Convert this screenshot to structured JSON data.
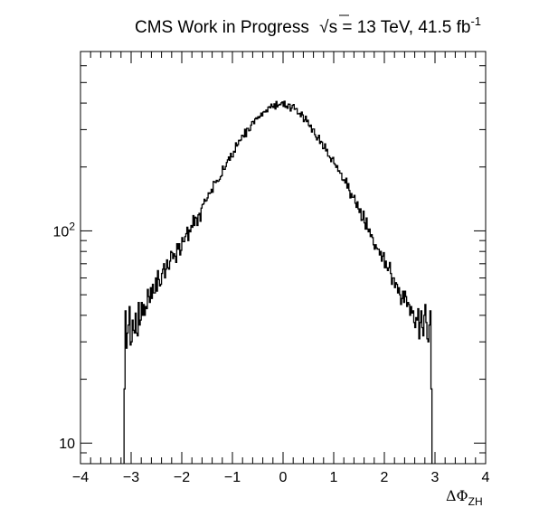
{
  "chart_data": {
    "type": "histogram",
    "title": {
      "prefix": "CMS Work in Progress",
      "sqrt_symbol": "√",
      "energy_var": "s",
      "energy_value": "= 13 TeV, 41.5 fb",
      "lumi_exponent": "-1"
    },
    "xlabel": {
      "base": "ΔΦ",
      "subscript": "ZH"
    },
    "ylabel": "",
    "xlim": [
      -4,
      4
    ],
    "ylim": [
      8,
      700
    ],
    "yscale": "log",
    "x_ticks": [
      "−4",
      "−3",
      "−2",
      "−1",
      "0",
      "1",
      "2",
      "3",
      "4"
    ],
    "y_ticks": [
      {
        "value": 10,
        "label": "10"
      },
      {
        "value": 100,
        "label": "10",
        "exponent": "2"
      }
    ],
    "grid": false,
    "legend": "none",
    "line_color": "#000000",
    "bin_width": 0.02,
    "x_start": -3.14,
    "values": [
      18,
      42,
      28,
      33,
      36,
      44,
      29,
      30,
      38,
      34,
      33,
      41,
      33,
      32,
      46,
      36,
      38,
      46,
      40,
      45,
      40,
      44,
      43,
      53,
      49,
      46,
      54,
      48,
      56,
      51,
      51,
      60,
      52,
      65,
      59,
      55,
      56,
      63,
      66,
      70,
      60,
      66,
      73,
      67,
      66,
      72,
      80,
      79,
      74,
      78,
      76,
      71,
      87,
      82,
      87,
      77,
      81,
      93,
      89,
      89,
      94,
      97,
      104,
      90,
      101,
      99,
      106,
      104,
      118,
      106,
      116,
      115,
      106,
      119,
      121,
      111,
      128,
      133,
      134,
      141,
      138,
      139,
      143,
      151,
      150,
      151,
      157,
      152,
      171,
      170,
      169,
      173,
      171,
      172,
      175,
      180,
      182,
      202,
      195,
      195,
      201,
      210,
      216,
      223,
      215,
      232,
      223,
      223,
      237,
      235,
      260,
      251,
      255,
      267,
      266,
      268,
      282,
      281,
      277,
      301,
      278,
      304,
      304,
      296,
      298,
      315,
      327,
      328,
      320,
      337,
      341,
      337,
      345,
      341,
      347,
      359,
      348,
      363,
      365,
      363,
      371,
      364,
      383,
      385,
      380,
      396,
      386,
      381,
      397,
      375,
      407,
      384,
      391,
      395,
      393,
      401,
      405,
      386,
      408,
      382,
      387,
      378,
      396,
      395,
      367,
      379,
      390,
      394,
      374,
      376,
      377,
      356,
      356,
      358,
      345,
      363,
      352,
      327,
      333,
      347,
      327,
      332,
      314,
      310,
      315,
      292,
      302,
      302,
      284,
      277,
      268,
      274,
      282,
      258,
      264,
      262,
      244,
      245,
      257,
      238,
      242,
      225,
      225,
      221,
      212,
      219,
      222,
      208,
      205,
      199,
      203,
      191,
      192,
      187,
      187,
      174,
      173,
      174,
      168,
      177,
      159,
      167,
      155,
      143,
      150,
      144,
      144,
      147,
      135,
      129,
      137,
      127,
      122,
      127,
      112,
      113,
      124,
      109,
      102,
      115,
      102,
      99,
      102,
      94,
      96,
      93,
      86,
      82,
      86,
      83,
      82,
      82,
      77,
      80,
      72,
      76,
      79,
      67,
      72,
      67,
      65,
      67,
      71,
      63,
      56,
      60,
      60,
      54,
      57,
      56,
      51,
      54,
      50,
      45,
      48,
      52,
      46,
      52,
      49,
      44,
      46,
      45,
      40,
      44,
      41,
      42,
      37,
      35,
      39,
      38,
      43,
      31,
      37,
      42,
      35,
      32,
      40,
      45,
      37,
      31,
      30,
      36,
      42,
      18
    ]
  }
}
